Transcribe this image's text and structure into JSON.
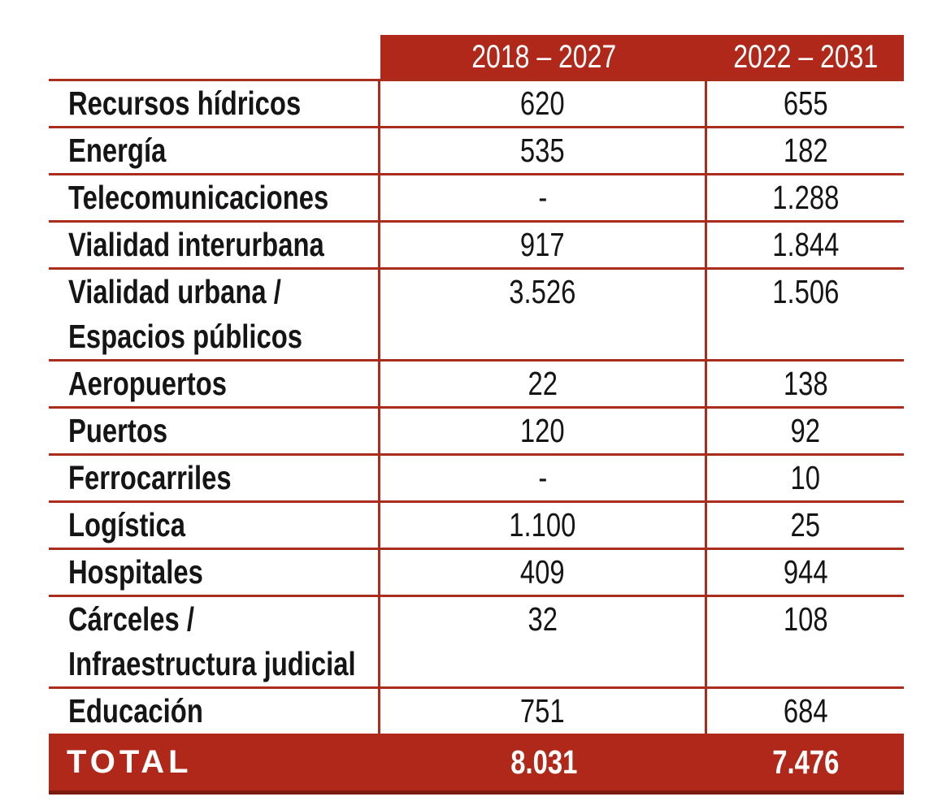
{
  "table": {
    "columns": [
      "2018 – 2027",
      "2022 – 2031"
    ],
    "rows": [
      {
        "label": "Recursos hídricos",
        "v1": "620",
        "v2": "655"
      },
      {
        "label": "Energía",
        "v1": "535",
        "v2": "182"
      },
      {
        "label": "Telecomunicaciones",
        "v1": "-",
        "v2": "1.288"
      },
      {
        "label": "Vialidad interurbana",
        "v1": "917",
        "v2": "1.844"
      },
      {
        "label": "Vialidad urbana /\nEspacios públicos",
        "v1": "3.526",
        "v2": "1.506"
      },
      {
        "label": "Aeropuertos",
        "v1": "22",
        "v2": "138"
      },
      {
        "label": "Puertos",
        "v1": "120",
        "v2": "92"
      },
      {
        "label": "Ferrocarriles",
        "v1": "-",
        "v2": "10"
      },
      {
        "label": "Logística",
        "v1": "1.100",
        "v2": "25"
      },
      {
        "label": "Hospitales",
        "v1": "409",
        "v2": "944"
      },
      {
        "label": "Cárceles /\nInfraestructura judicial",
        "v1": "32",
        "v2": "108"
      },
      {
        "label": "Educación",
        "v1": "751",
        "v2": "684"
      }
    ],
    "total": {
      "label": "TOTAL",
      "v1": "8.031",
      "v2": "7.476"
    },
    "colors": {
      "accent_red": "#B0281A",
      "grid_line": "#AA2C1C",
      "dark_red_border": "#7E1B10",
      "header_text": "#FFFFFF",
      "body_text": "#151515"
    }
  },
  "chart_data": {
    "type": "table",
    "title": "",
    "categories": [
      "Recursos hídricos",
      "Energía",
      "Telecomunicaciones",
      "Vialidad interurbana",
      "Vialidad urbana / Espacios públicos",
      "Aeropuertos",
      "Puertos",
      "Ferrocarriles",
      "Logística",
      "Hospitales",
      "Cárceles / Infraestructura judicial",
      "Educación"
    ],
    "series": [
      {
        "name": "2018 – 2027",
        "values": [
          620,
          535,
          null,
          917,
          3526,
          22,
          120,
          null,
          1100,
          409,
          32,
          751
        ]
      },
      {
        "name": "2022 – 2031",
        "values": [
          655,
          182,
          1288,
          1844,
          1506,
          138,
          92,
          10,
          25,
          944,
          108,
          684
        ]
      }
    ],
    "totals": {
      "2018 – 2027": 8031,
      "2022 – 2031": 7476
    },
    "missing_value_marker": "-",
    "layout": {
      "header_fill": "#B0281A",
      "total_row_fill": "#B0281A",
      "grid": "on"
    }
  }
}
